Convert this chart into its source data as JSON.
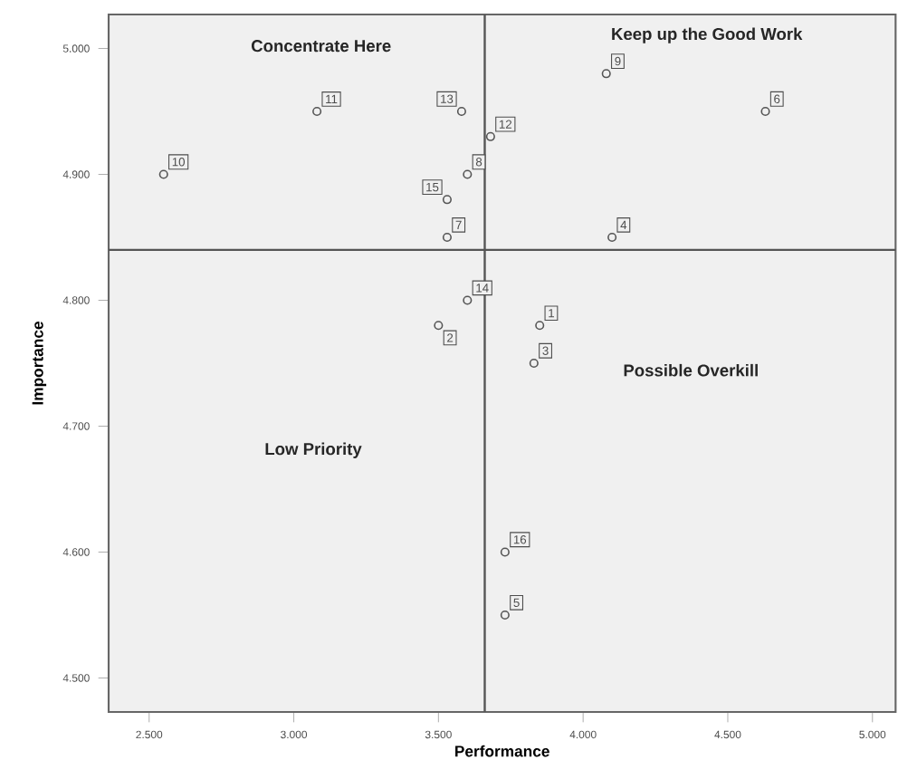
{
  "chart_data": {
    "type": "scatter",
    "xlabel": "Performance",
    "ylabel": "Importance",
    "marker": "circle",
    "grid": false,
    "x": [
      3.85,
      3.5,
      3.83,
      4.1,
      3.73,
      4.63,
      3.53,
      3.6,
      4.08,
      2.55,
      3.08,
      3.68,
      3.58,
      3.6,
      3.53,
      3.73
    ],
    "series": [
      {
        "color": "#555555",
        "values": [
          4.78,
          4.78,
          4.75,
          4.85,
          4.55,
          4.95,
          4.85,
          4.9,
          4.98,
          4.9,
          4.95,
          4.93,
          4.95,
          4.8,
          4.88,
          4.6
        ]
      }
    ],
    "xlim": [
      2.36,
      5.08
    ],
    "ylim": [
      4.473,
      5.027
    ],
    "xticks": [
      {
        "value": 2.5,
        "label": "2.500"
      },
      {
        "value": 3.0,
        "label": "3.000"
      },
      {
        "value": 3.5,
        "label": "3.500"
      },
      {
        "value": 4.0,
        "label": "4.000"
      },
      {
        "value": 4.5,
        "label": "4.500"
      },
      {
        "value": 5.0,
        "label": "5.000"
      }
    ],
    "yticks": [
      {
        "value": 4.5,
        "label": "4.500"
      },
      {
        "value": 4.6,
        "label": "4.600"
      },
      {
        "value": 4.7,
        "label": "4.700"
      },
      {
        "value": 4.8,
        "label": "4.800"
      },
      {
        "value": 4.9,
        "label": "4.900"
      },
      {
        "value": 5.0,
        "label": "5.000"
      }
    ],
    "ref_lines": [
      {
        "axis": "x",
        "value": 3.66,
        "color": "#555555"
      },
      {
        "axis": "y",
        "value": 4.84,
        "color": "#555555"
      }
    ],
    "annotations": [
      "Concentrate Here",
      "Keep up the Good Work",
      "Low Priority",
      "Possible Overkill",
      {
        "text": "1",
        "x": 3.85,
        "y": 4.78
      },
      {
        "text": "2",
        "x": 3.5,
        "y": 4.78
      },
      {
        "text": "3",
        "x": 3.83,
        "y": 4.75
      },
      {
        "text": "4",
        "x": 4.1,
        "y": 4.85
      },
      {
        "text": "5",
        "x": 3.73,
        "y": 4.55
      },
      {
        "text": "6",
        "x": 4.63,
        "y": 4.95
      },
      {
        "text": "7",
        "x": 3.53,
        "y": 4.85
      },
      {
        "text": "8",
        "x": 3.6,
        "y": 4.9
      },
      {
        "text": "9",
        "x": 4.08,
        "y": 4.98
      },
      {
        "text": "10",
        "x": 2.55,
        "y": 4.9
      },
      {
        "text": "11",
        "x": 3.08,
        "y": 4.95
      },
      {
        "text": "12",
        "x": 3.68,
        "y": 4.93
      },
      {
        "text": "13",
        "x": 3.58,
        "y": 4.95
      },
      {
        "text": "14",
        "x": 3.6,
        "y": 4.8
      },
      {
        "text": "15",
        "x": 3.53,
        "y": 4.88
      },
      {
        "text": "16",
        "x": 3.73,
        "y": 4.6
      }
    ]
  }
}
